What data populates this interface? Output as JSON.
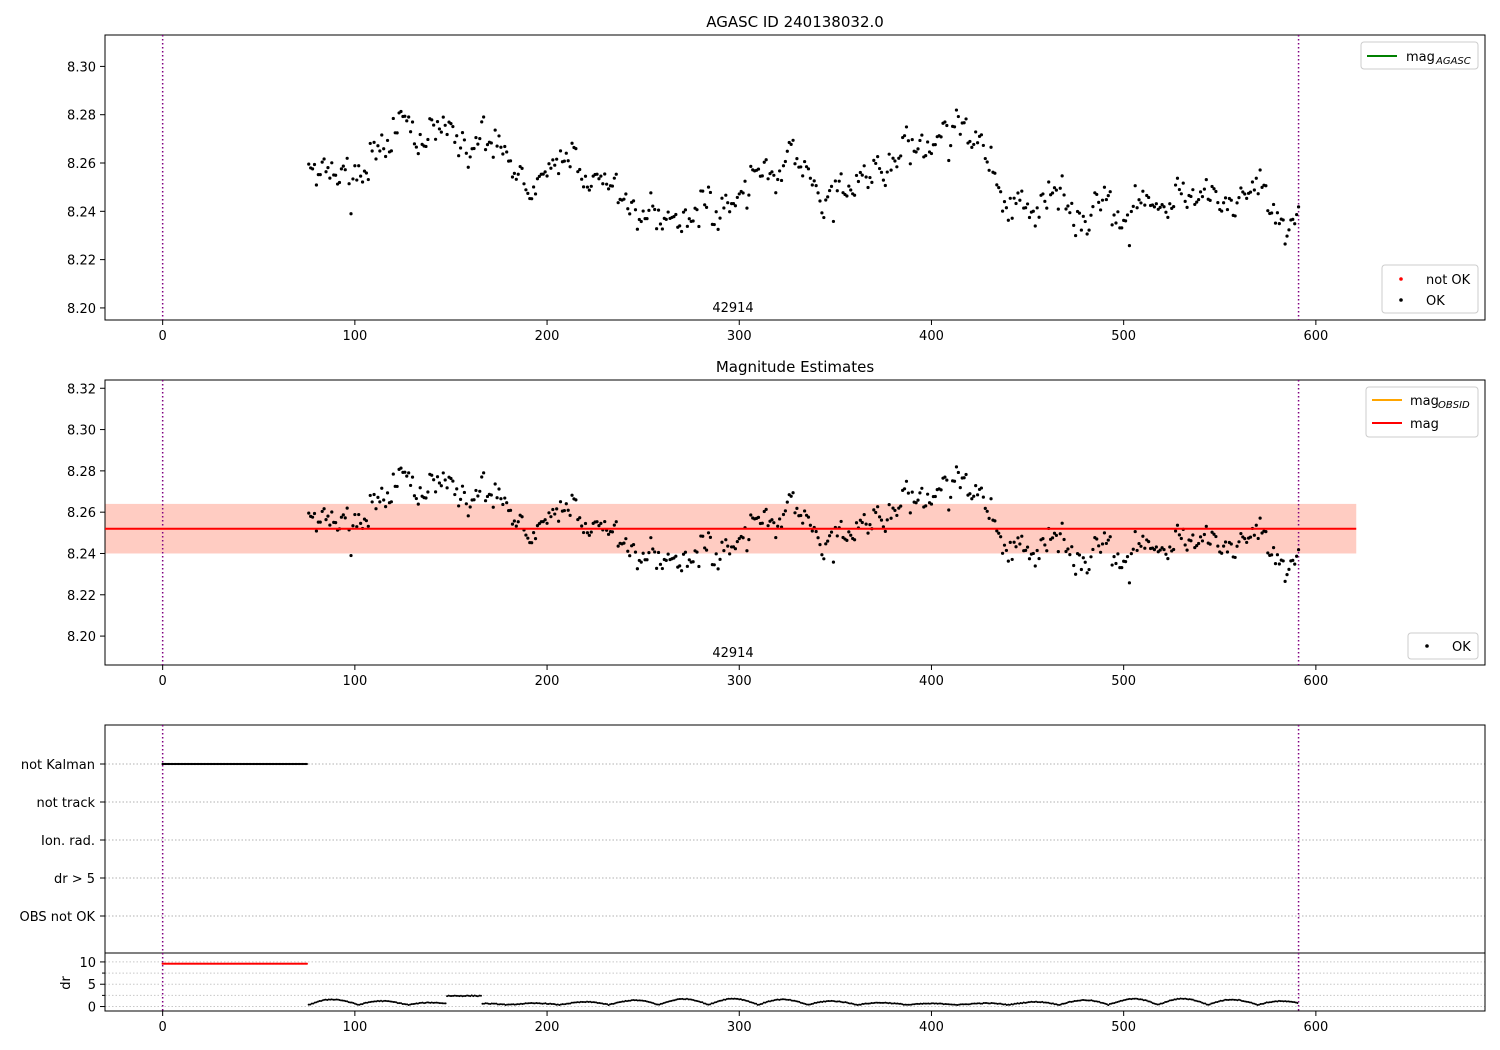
{
  "figure": {
    "title": "AGASC ID 240138032.0",
    "obsid_label": "42914"
  },
  "chart_data": [
    {
      "type": "scatter",
      "panel": "agasc",
      "title": "AGASC ID 240138032.0",
      "annotation": "42914",
      "xlim": [
        -30,
        688
      ],
      "ylim": [
        8.195,
        8.313
      ],
      "yticks": [
        8.2,
        8.22,
        8.24,
        8.26,
        8.28,
        8.3
      ],
      "xticks": [
        0,
        100,
        200,
        300,
        400,
        500,
        600
      ],
      "vlines": [
        0,
        591
      ],
      "legend_lines": [
        {
          "name": "mag_AGASC",
          "label": "mag",
          "sub": "AGASC",
          "color": "#008000"
        }
      ],
      "legend_points": [
        {
          "name": "not OK",
          "color": "#ff0000"
        },
        {
          "name": "OK",
          "color": "#000000"
        }
      ],
      "legend_lines_loc": "upper right",
      "legend_points_loc": "lower right",
      "series": [
        {
          "name": "OK",
          "x_start": 76,
          "x_end": 591,
          "mean": 8.252,
          "spread": 0.014
        }
      ]
    },
    {
      "type": "scatter",
      "panel": "estimates",
      "title": "Magnitude Estimates",
      "annotation": "42914",
      "xlim": [
        -30,
        688
      ],
      "ylim": [
        8.186,
        8.324
      ],
      "yticks": [
        8.2,
        8.22,
        8.24,
        8.26,
        8.28,
        8.3,
        8.32
      ],
      "xticks": [
        0,
        100,
        200,
        300,
        400,
        500,
        600
      ],
      "vlines": [
        0,
        591
      ],
      "mag_line": 8.252,
      "band": [
        8.24,
        8.264
      ],
      "band_x": [
        -30,
        621
      ],
      "legend_lines": [
        {
          "name": "mag_OBSID",
          "label": "mag",
          "sub": "OBSID",
          "color": "#ffa500"
        },
        {
          "name": "mag",
          "label": "mag",
          "sub": "",
          "color": "#ff0000"
        }
      ],
      "legend_points": [
        {
          "name": "OK",
          "color": "#000000"
        }
      ],
      "legend_lines_loc": "upper right",
      "legend_points_loc": "lower right"
    },
    {
      "type": "scatter",
      "panel": "flags",
      "categories": [
        "not Kalman",
        "not track",
        "Ion. rad.",
        "dr > 5",
        "OBS not OK"
      ],
      "flag_segments": [
        {
          "category": "not Kalman",
          "x_start": 0,
          "x_end": 75
        }
      ],
      "xlim": [
        -30,
        688
      ],
      "vlines": [
        0,
        591
      ]
    },
    {
      "type": "scatter",
      "panel": "dr",
      "ylabel": "dr",
      "ylim": [
        -1,
        12
      ],
      "yticks": [
        0,
        5,
        10
      ],
      "xticks": [
        0,
        100,
        200,
        300,
        400,
        500,
        600
      ],
      "xlim": [
        -30,
        688
      ],
      "vlines": [
        0,
        591
      ],
      "clipped_value": 10,
      "clipped_x": [
        0,
        75
      ],
      "series": [
        {
          "name": "dr",
          "x_start": 76,
          "x_end": 591,
          "low": 0,
          "high": 2.5
        }
      ]
    }
  ],
  "colors": {
    "ok": "#000000",
    "not_ok": "#ff0000",
    "vline": "#800080",
    "band_obsid": "#ffa07a",
    "band_mag": "#ffc0cb",
    "mag": "#ff0000"
  }
}
